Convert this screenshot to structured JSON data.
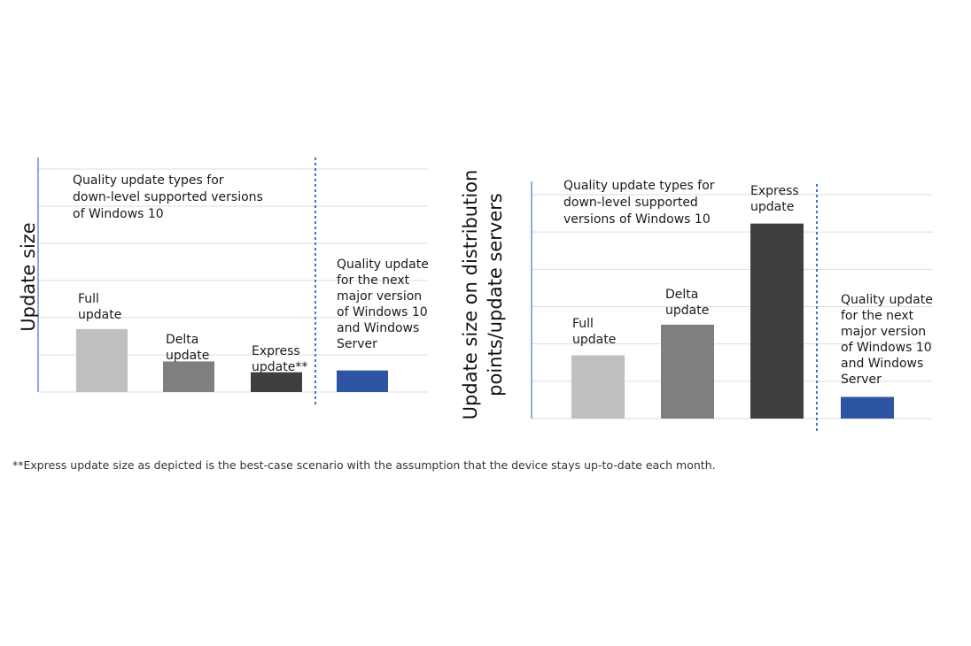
{
  "colors": {
    "gridline": "#dadde3",
    "axis": "#4472c4",
    "divider": "#4472c4",
    "full": "#bfbfbf",
    "delta": "#7f7f7f",
    "express": "#3f3f3f",
    "next": "#2e55a3"
  },
  "footnote": "**Express update size as depicted is the best-case scenario with the assumption that the device stays up-to-date each month.",
  "chart_data": [
    {
      "type": "bar",
      "title": "",
      "xlabel": "",
      "ylabel": "Update size",
      "ylim": [
        0,
        6.2
      ],
      "grid": true,
      "group_labels": {
        "left": [
          "Quality update types for",
          "down-level supported versions",
          "of Windows 10"
        ],
        "right": [
          "Quality update",
          "for the next",
          "major version",
          "of Windows 10",
          "and Windows",
          "Server"
        ]
      },
      "categories": [
        [
          "Full",
          "update"
        ],
        [
          "Delta",
          "update"
        ],
        [
          "Express",
          "update**"
        ],
        []
      ],
      "values": [
        1.75,
        0.85,
        0.55,
        0.6
      ]
    },
    {
      "type": "bar",
      "title": "",
      "xlabel": "",
      "ylabel": [
        "Update size on distribution",
        "points/update servers"
      ],
      "ylim": [
        0,
        6.2
      ],
      "grid": true,
      "group_labels": {
        "left": [
          "Quality update types for",
          "down-level supported",
          "versions of Windows 10"
        ],
        "right": [
          "Quality update",
          "for the next",
          "major version",
          "of Windows 10",
          "and Windows",
          "Server"
        ]
      },
      "categories": [
        [
          "Full",
          "update"
        ],
        [
          "Delta",
          "update"
        ],
        [
          "Express",
          "update"
        ],
        []
      ],
      "values": [
        1.75,
        2.6,
        5.4,
        0.6
      ]
    }
  ]
}
